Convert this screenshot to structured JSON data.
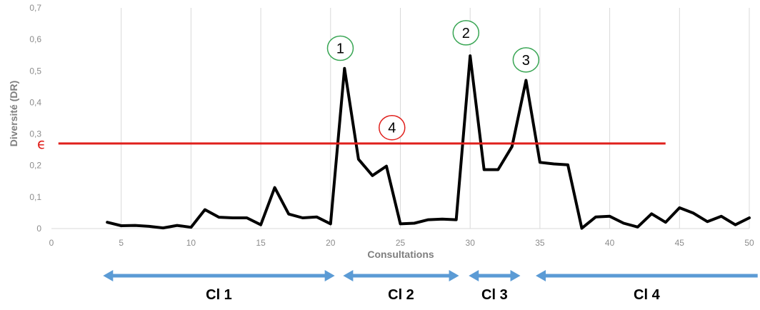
{
  "chart_data": {
    "type": "line",
    "xlabel": "Consultations",
    "ylabel": "Diversité (DR)",
    "xlim": [
      0,
      50
    ],
    "ylim": [
      0,
      0.7
    ],
    "x_ticks": [
      "0",
      "5",
      "10",
      "15",
      "20",
      "25",
      "30",
      "35",
      "40",
      "45",
      "50"
    ],
    "y_ticks": [
      "0",
      "0,1",
      "0,2",
      "0,3",
      "0,4",
      "0,5",
      "0,6",
      "0,7"
    ],
    "grid": "vertical",
    "series": [
      {
        "color": "#000000",
        "x": [
          4,
          5,
          6,
          7,
          8,
          9,
          10,
          11,
          12,
          13,
          14,
          15,
          16,
          17,
          18,
          19,
          20,
          21,
          22,
          23,
          24,
          25,
          26,
          27,
          28,
          29,
          30,
          31,
          32,
          33,
          34,
          35,
          36,
          37,
          38,
          39,
          40,
          41,
          42,
          43,
          44,
          45,
          46,
          47,
          48,
          49,
          50
        ],
        "y": [
          0.02,
          0.009,
          0.01,
          0.007,
          0.002,
          0.01,
          0.004,
          0.06,
          0.036,
          0.034,
          0.034,
          0.012,
          0.13,
          0.046,
          0.034,
          0.037,
          0.015,
          0.508,
          0.22,
          0.168,
          0.198,
          0.015,
          0.017,
          0.028,
          0.03,
          0.028,
          0.548,
          0.187,
          0.187,
          0.26,
          0.47,
          0.21,
          0.205,
          0.202,
          0.001,
          0.037,
          0.039,
          0.017,
          0.005,
          0.047,
          0.02,
          0.066,
          0.049,
          0.022,
          0.039,
          0.012,
          0.034
        ]
      }
    ],
    "threshold": {
      "label": "ϵ",
      "y": 0.27,
      "x_start": 0.5,
      "x_end": 44,
      "color": "#e0201c"
    },
    "annotations": [
      {
        "label": "1",
        "x": 20.7,
        "y": 0.572,
        "color": "#3aa655"
      },
      {
        "label": "2",
        "x": 29.7,
        "y": 0.621,
        "color": "#3aa655"
      },
      {
        "label": "3",
        "x": 34.0,
        "y": 0.535,
        "color": "#3aa655"
      },
      {
        "label": "4",
        "x": 24.4,
        "y": 0.32,
        "color": "#e0201c"
      }
    ],
    "segments": [
      {
        "label": "Cl 1",
        "from": 3.7,
        "to": 20.3,
        "color": "#5b9bd5",
        "direction": "both"
      },
      {
        "label": "Cl 2",
        "from": 20.9,
        "to": 29.2,
        "color": "#5b9bd5",
        "direction": "both"
      },
      {
        "label": "Cl 3",
        "from": 29.9,
        "to": 33.6,
        "color": "#5b9bd5",
        "direction": "both"
      },
      {
        "label": "Cl 4",
        "from": 34.7,
        "to": 50.6,
        "color": "#5b9bd5",
        "direction": "left"
      }
    ]
  }
}
